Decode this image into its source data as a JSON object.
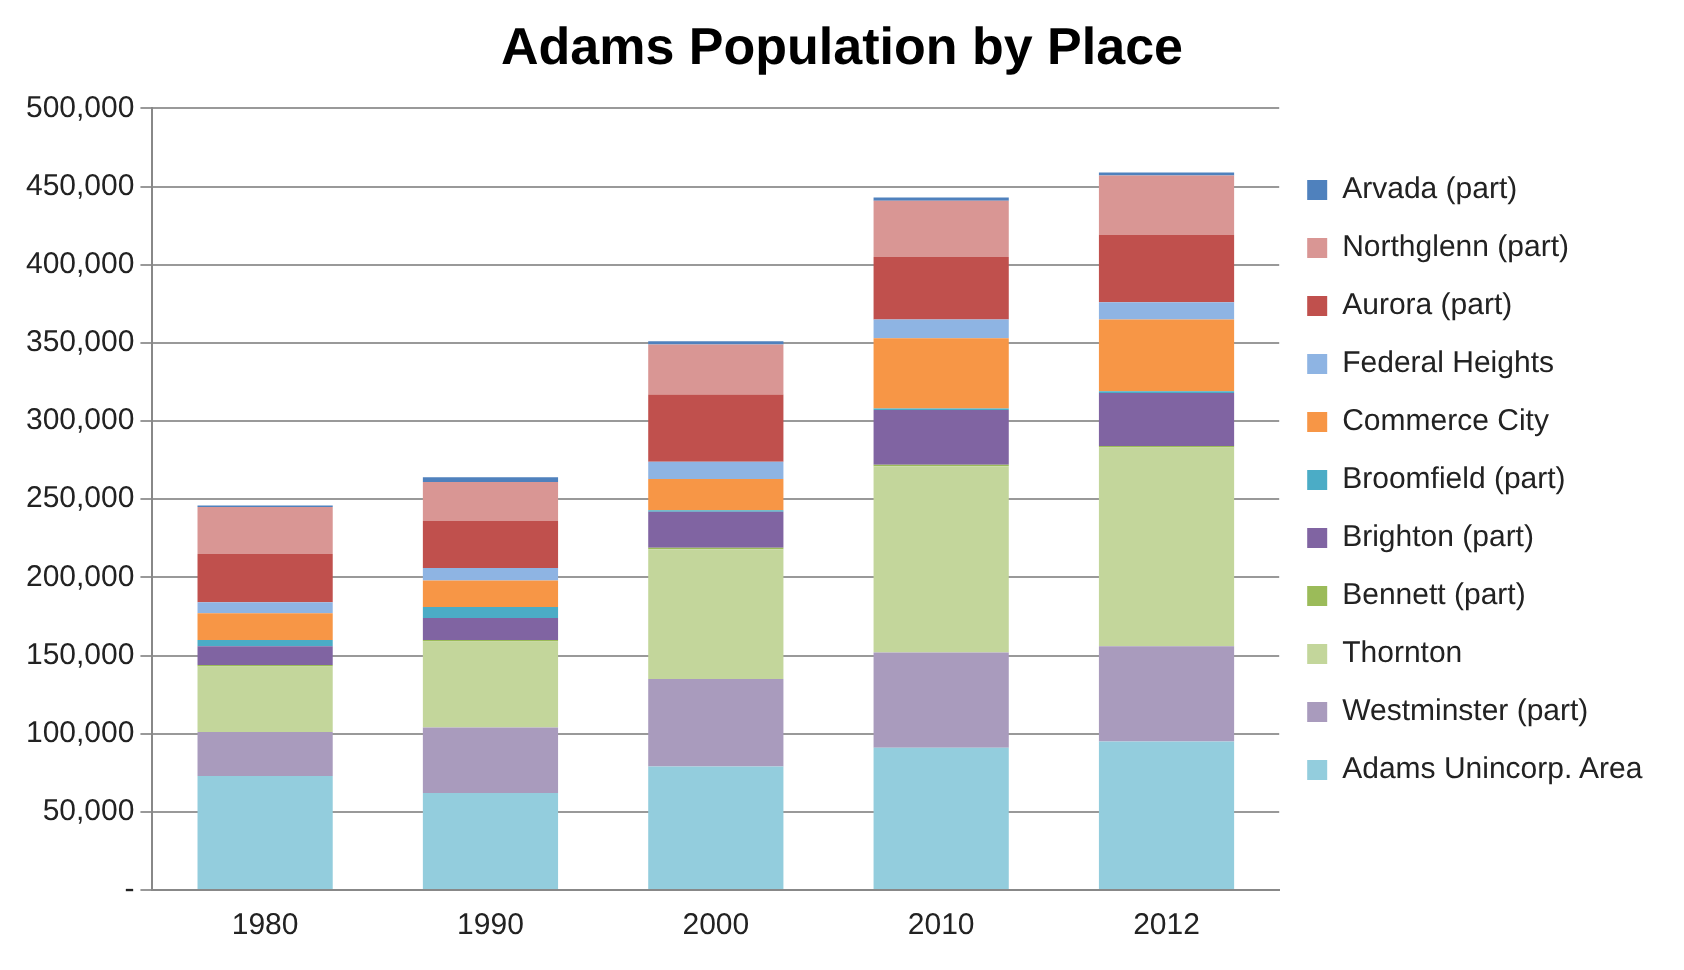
{
  "chart_data": {
    "type": "bar",
    "title": "Adams Population by Place",
    "categories": [
      "1980",
      "1990",
      "2000",
      "2010",
      "2012"
    ],
    "stacked": true,
    "legend": "right",
    "grid": "y",
    "ylim": [
      0,
      500000
    ],
    "yticks": [
      {
        "value": 0,
        "label": "-"
      },
      {
        "value": 50000,
        "label": "50,000"
      },
      {
        "value": 100000,
        "label": "100,000"
      },
      {
        "value": 150000,
        "label": "150,000"
      },
      {
        "value": 200000,
        "label": "200,000"
      },
      {
        "value": 250000,
        "label": "250,000"
      },
      {
        "value": 300000,
        "label": "300,000"
      },
      {
        "value": 350000,
        "label": "350,000"
      },
      {
        "value": 400000,
        "label": "400,000"
      },
      {
        "value": 450000,
        "label": "450,000"
      },
      {
        "value": 500000,
        "label": "500,000"
      }
    ],
    "series": [
      {
        "name": "Adams Unincorp. Area",
        "color": "#93cddd",
        "values": [
          73000,
          62000,
          79000,
          91000,
          95000
        ]
      },
      {
        "name": "Westminster (part)",
        "color": "#a99bbd",
        "values": [
          28000,
          42000,
          56000,
          61000,
          61000
        ]
      },
      {
        "name": "Thornton",
        "color": "#c3d69b",
        "values": [
          42000,
          55000,
          83000,
          119000,
          127000
        ]
      },
      {
        "name": "Bennett (part)",
        "color": "#9bbb59",
        "values": [
          1000,
          1000,
          1000,
          1000,
          1000
        ]
      },
      {
        "name": "Brighton (part)",
        "color": "#8064a2",
        "values": [
          12000,
          14000,
          23000,
          35000,
          34000
        ]
      },
      {
        "name": "Broomfield (part)",
        "color": "#4bacc6",
        "values": [
          4000,
          7000,
          1000,
          1000,
          1000
        ]
      },
      {
        "name": "Commerce City",
        "color": "#f79646",
        "values": [
          17000,
          17000,
          20000,
          45000,
          46000
        ]
      },
      {
        "name": "Federal Heights",
        "color": "#8eb4e3",
        "values": [
          7000,
          8000,
          11000,
          12000,
          11000
        ]
      },
      {
        "name": "Aurora (part)",
        "color": "#c0504d",
        "values": [
          31000,
          30000,
          43000,
          40000,
          43000
        ]
      },
      {
        "name": "Northglenn (part)",
        "color": "#d99694",
        "values": [
          30000,
          25000,
          32000,
          36000,
          38000
        ]
      },
      {
        "name": "Arvada (part)",
        "color": "#4f81bd",
        "values": [
          1000,
          3000,
          2000,
          2000,
          2000
        ]
      }
    ]
  }
}
